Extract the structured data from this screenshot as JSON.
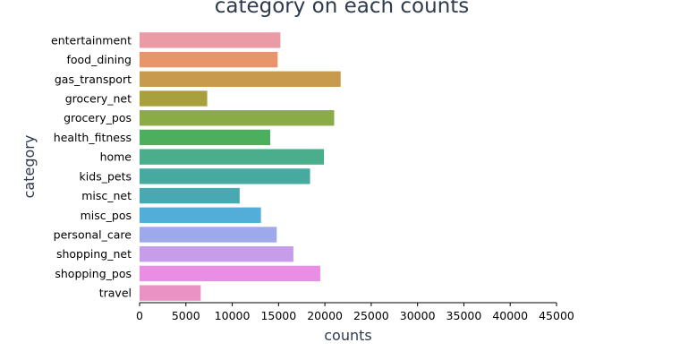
{
  "chart_data": {
    "type": "bar",
    "orientation": "horizontal",
    "title": "category on each counts",
    "xlabel": "counts",
    "ylabel": "category",
    "xlim": [
      0,
      45000
    ],
    "xticks": [
      0,
      5000,
      10000,
      15000,
      20000,
      25000,
      30000,
      35000,
      40000,
      45000
    ],
    "grid": false,
    "categories": [
      "entertainment",
      "food_dining",
      "gas_transport",
      "grocery_net",
      "grocery_pos",
      "health_fitness",
      "home",
      "kids_pets",
      "misc_net",
      "misc_pos",
      "personal_care",
      "shopping_net",
      "shopping_pos",
      "travel"
    ],
    "values": [
      15200,
      14900,
      21700,
      7300,
      21000,
      14100,
      19900,
      18400,
      10800,
      13100,
      14800,
      16600,
      19500,
      6600
    ],
    "colors": [
      "#eb9ba5",
      "#e8956b",
      "#c89a4e",
      "#a8a03c",
      "#8aab45",
      "#4caf5d",
      "#4aae8c",
      "#47aaa0",
      "#48a9b2",
      "#52aed8",
      "#9ea9eb",
      "#c79deb",
      "#e98ee4",
      "#eb92c4"
    ]
  }
}
